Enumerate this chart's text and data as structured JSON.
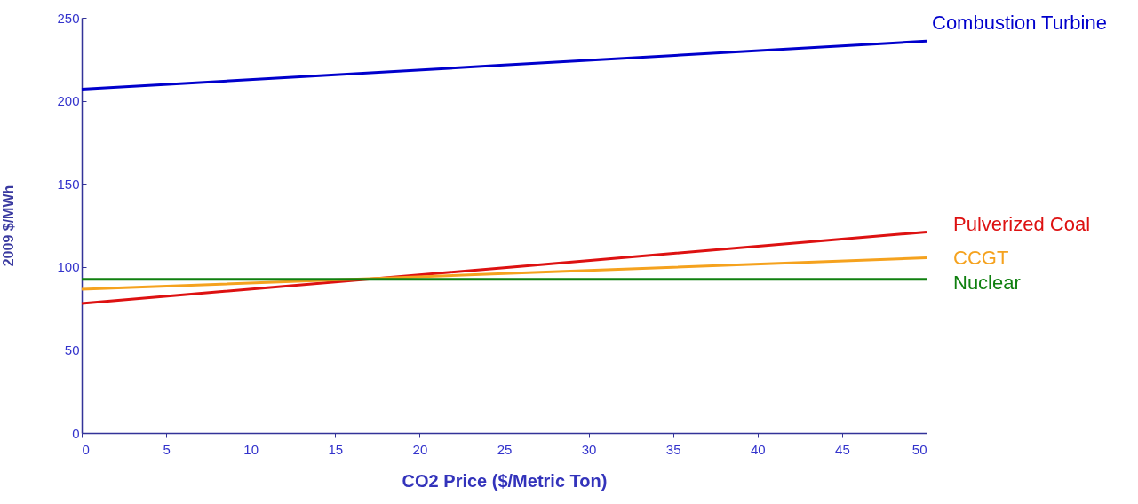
{
  "chart_data": {
    "type": "line",
    "xlabel": "CO2 Price ($/Metric Ton)",
    "ylabel": "2009 $/MWh",
    "x": [
      0,
      25,
      50
    ],
    "series": [
      {
        "name": "Combustion Turbine",
        "color": "#0000cc",
        "values": [
          207,
          221.5,
          236
        ]
      },
      {
        "name": "Pulverized Coal",
        "color": "#dd1111",
        "values": [
          78,
          99.5,
          121
        ]
      },
      {
        "name": "CCGT",
        "color": "#f5a21e",
        "values": [
          86.5,
          96,
          105.5
        ]
      },
      {
        "name": "Nuclear",
        "color": "#108010",
        "values": [
          92.5,
          92.5,
          92.5
        ]
      }
    ],
    "xlim": [
      0,
      50
    ],
    "xticks": [
      0,
      5,
      10,
      15,
      20,
      25,
      30,
      35,
      40,
      45,
      50
    ],
    "ylim": [
      0,
      250
    ],
    "yticks": [
      0,
      50,
      100,
      150,
      200,
      250
    ],
    "grid": false,
    "legend": false
  }
}
